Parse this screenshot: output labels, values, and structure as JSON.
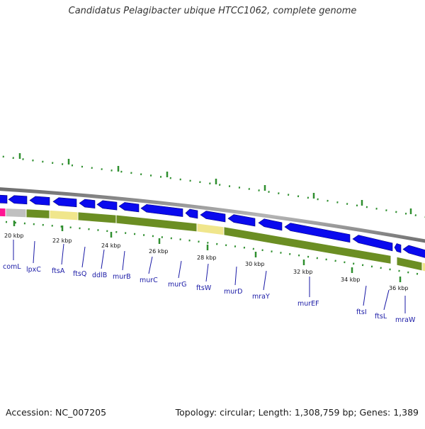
{
  "title": "Candidatus Pelagibacter ubique HTCC1062, complete genome",
  "footer": {
    "accession": "Accession: NC_007205",
    "summary": "Topology: circular; Length: 1,308,759 bp; Genes: 1,389"
  },
  "colors": {
    "cds": "#0a0aee",
    "cds_stroke": "#000080",
    "gene_track": "#6b8e23",
    "rrna_like": "#f0e68c",
    "pseudo": "#c0c0c0",
    "trna": "#ff1493",
    "backbone": "#888888",
    "tick": "#2f8f2f",
    "label": "#1a1aa6"
  },
  "kbp_labels": [
    "20 kbp",
    "22 kbp",
    "24 kbp",
    "26 kbp",
    "28 kbp",
    "30 kbp",
    "32 kbp",
    "34 kbp",
    "36 kbp"
  ],
  "gene_labels": [
    "comL",
    "lpxC",
    "ftsA",
    "ftsQ",
    "ddlB",
    "murB",
    "murC",
    "murG",
    "ftsW",
    "murD",
    "mraY",
    "murEF",
    "ftsI",
    "ftsL",
    "mraW"
  ]
}
